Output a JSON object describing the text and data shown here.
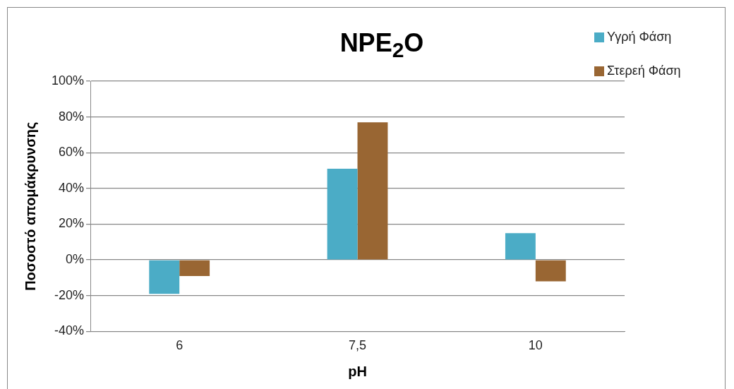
{
  "chart_data": {
    "type": "bar",
    "title": "NPE$_{2}$O",
    "xlabel": "pH",
    "ylabel": "Ποσοστό απομάκρυνσης",
    "categories": [
      "6",
      "7,5",
      "10"
    ],
    "series": [
      {
        "name": "Υγρή Φάση",
        "color": "#4bacc6",
        "values": [
          -19,
          51,
          15
        ]
      },
      {
        "name": "Στερεή Φάση",
        "color": "#996633",
        "values": [
          -9,
          77,
          -12
        ]
      }
    ],
    "ylim": [
      -40,
      100
    ],
    "yticks": [
      {
        "value": -40,
        "label": "-40%"
      },
      {
        "value": -20,
        "label": "-20%"
      },
      {
        "value": 0,
        "label": "0%"
      },
      {
        "value": 20,
        "label": "20%"
      },
      {
        "value": 40,
        "label": "40%"
      },
      {
        "value": 60,
        "label": "60%"
      },
      {
        "value": 80,
        "label": "80%"
      },
      {
        "value": 100,
        "label": "100%"
      }
    ],
    "grid": "y",
    "legend": "top right"
  }
}
